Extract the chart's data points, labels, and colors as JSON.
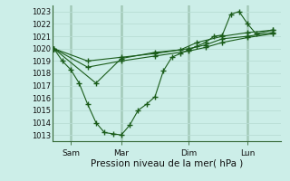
{
  "xlabel": "Pression niveau de la mer( hPa )",
  "background_color": "#cceee8",
  "grid_color": "#aaddcc",
  "line_color": "#1a5c1a",
  "vline_color": "#336633",
  "ylim": [
    1012.5,
    1023.5
  ],
  "yticks": [
    1013,
    1014,
    1015,
    1016,
    1017,
    1018,
    1019,
    1020,
    1021,
    1022,
    1023
  ],
  "xtick_labels": [
    "Sam",
    "Mar",
    "Dim",
    "Lun"
  ],
  "xtick_positions": [
    1.0,
    4.0,
    8.0,
    11.5
  ],
  "vline_positions": [
    1.0,
    4.0,
    8.0,
    11.5
  ],
  "xlim": [
    -0.1,
    13.5
  ],
  "series1_x": [
    0,
    0.5,
    1.0,
    1.5,
    2.0,
    2.5,
    3.0,
    3.5,
    4.0,
    4.5,
    5.0,
    5.5,
    6.0,
    6.5,
    7.0,
    7.5,
    8.0,
    8.5,
    9.0,
    9.5,
    10.0,
    10.5,
    11.0,
    11.5,
    12.0,
    13.0
  ],
  "series1_y": [
    1020.0,
    1019.0,
    1018.3,
    1017.2,
    1015.5,
    1014.0,
    1013.2,
    1013.1,
    1013.0,
    1013.8,
    1015.0,
    1015.5,
    1016.1,
    1018.2,
    1019.3,
    1019.6,
    1019.9,
    1020.2,
    1020.5,
    1021.0,
    1021.1,
    1022.8,
    1023.0,
    1022.0,
    1021.2,
    1021.5
  ],
  "series2_x": [
    0,
    2.0,
    4.0,
    6.0,
    8.0,
    9.0,
    10.0,
    11.5,
    13.0
  ],
  "series2_y": [
    1020.0,
    1019.0,
    1019.3,
    1019.6,
    1020.0,
    1020.3,
    1020.8,
    1021.0,
    1021.3
  ],
  "series3_x": [
    0,
    2.0,
    4.0,
    6.0,
    8.0,
    9.0,
    10.0,
    11.5,
    13.0
  ],
  "series3_y": [
    1020.0,
    1018.5,
    1019.0,
    1019.4,
    1019.8,
    1020.1,
    1020.5,
    1020.9,
    1021.2
  ],
  "series4_x": [
    0,
    2.5,
    4.0,
    6.0,
    7.5,
    8.5,
    10.0,
    11.5,
    13.0
  ],
  "series4_y": [
    1020.0,
    1017.2,
    1019.2,
    1019.7,
    1019.9,
    1020.5,
    1021.0,
    1021.3,
    1021.5
  ]
}
